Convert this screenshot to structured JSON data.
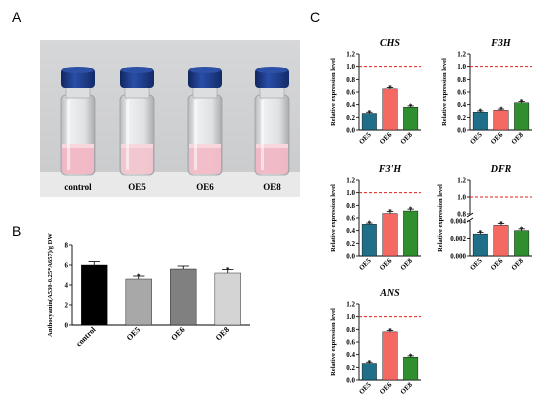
{
  "panels": {
    "a": "A",
    "b": "B",
    "c": "C"
  },
  "photo": {
    "labels": [
      "control",
      "OE5",
      "OE6",
      "OE8"
    ],
    "cap_color": "#1c3b8c",
    "liquid_colors": [
      "#f2b7c4",
      "#f3c5cf",
      "#f2bcc8",
      "#f0b8c5"
    ]
  },
  "chart_data": [
    {
      "type": "bar",
      "panel": "B",
      "categories": [
        "control",
        "OE5",
        "OE6",
        "OE8"
      ],
      "values": [
        6.0,
        4.6,
        5.6,
        5.2
      ],
      "errors": [
        0.35,
        0.3,
        0.3,
        0.35
      ],
      "significance": [
        "",
        "*",
        "",
        "*"
      ],
      "colors": [
        "#000000",
        "#a8a8a8",
        "#808080",
        "#d4d4d4"
      ],
      "ylabel": "Anthocyanin(A530-0.25*A657)/g DW",
      "ylim": [
        0,
        8
      ],
      "yticks": [
        0,
        2,
        4,
        6,
        8
      ]
    },
    {
      "type": "bar",
      "panel": "C",
      "title": "CHS",
      "categories": [
        "OE5",
        "OE6",
        "OE8"
      ],
      "values": [
        0.26,
        0.65,
        0.36
      ],
      "errors": [
        0.02,
        0.02,
        0.02
      ],
      "significance": [
        "*",
        "*",
        "*"
      ],
      "colors": [
        "#1f6f88",
        "#f46a63",
        "#2f8f2f"
      ],
      "reference_line": 1.0,
      "ylabel": "Relative expression level",
      "ylim": [
        0,
        1.2
      ],
      "yticks": [
        0.0,
        0.2,
        0.4,
        0.6,
        0.8,
        1.0,
        1.2
      ]
    },
    {
      "type": "bar",
      "panel": "C",
      "title": "F3H",
      "categories": [
        "OE5",
        "OE6",
        "OE8"
      ],
      "values": [
        0.28,
        0.31,
        0.43
      ],
      "errors": [
        0.02,
        0.02,
        0.02
      ],
      "significance": [
        "*",
        "*",
        "*"
      ],
      "colors": [
        "#1f6f88",
        "#f46a63",
        "#2f8f2f"
      ],
      "reference_line": 1.0,
      "ylabel": "Relative expression level",
      "ylim": [
        0,
        1.2
      ],
      "yticks": [
        0.0,
        0.2,
        0.4,
        0.6,
        0.8,
        1.0,
        1.2
      ]
    },
    {
      "type": "bar",
      "panel": "C",
      "title": "F3'H",
      "categories": [
        "OE5",
        "OE6",
        "OE8"
      ],
      "values": [
        0.5,
        0.67,
        0.71
      ],
      "errors": [
        0.02,
        0.03,
        0.03
      ],
      "significance": [
        "*",
        "*",
        "*"
      ],
      "colors": [
        "#1f6f88",
        "#f46a63",
        "#2f8f2f"
      ],
      "reference_line": 1.0,
      "ylabel": "Relative expression level",
      "ylim": [
        0,
        1.2
      ],
      "yticks": [
        0.0,
        0.2,
        0.4,
        0.6,
        0.8,
        1.0,
        1.2
      ]
    },
    {
      "type": "bar",
      "panel": "C",
      "title": "DFR",
      "categories": [
        "OE5",
        "OE6",
        "OE8"
      ],
      "values": [
        0.0025,
        0.0035,
        0.0029
      ],
      "errors": [
        0.0002,
        0.0002,
        0.0002
      ],
      "significance": [
        "*",
        "*",
        "*"
      ],
      "colors": [
        "#1f6f88",
        "#f46a63",
        "#2f8f2f"
      ],
      "reference_line": 1.0,
      "ylabel": "Relative expression level",
      "axis_break": true,
      "upper_ticks": [
        0.8,
        1.0,
        1.2
      ],
      "lower_ticks": [
        0.0,
        0.002,
        0.004
      ]
    },
    {
      "type": "bar",
      "panel": "C",
      "title": "ANS",
      "categories": [
        "OE5",
        "OE6",
        "OE8"
      ],
      "values": [
        0.26,
        0.76,
        0.36
      ],
      "errors": [
        0.02,
        0.02,
        0.02
      ],
      "significance": [
        "*",
        "*",
        "*"
      ],
      "colors": [
        "#1f6f88",
        "#f46a63",
        "#2f8f2f"
      ],
      "reference_line": 1.0,
      "ylabel": "Relative expression level",
      "ylim": [
        0,
        1.2
      ],
      "yticks": [
        0.0,
        0.2,
        0.4,
        0.6,
        0.8,
        1.0,
        1.2
      ]
    }
  ]
}
